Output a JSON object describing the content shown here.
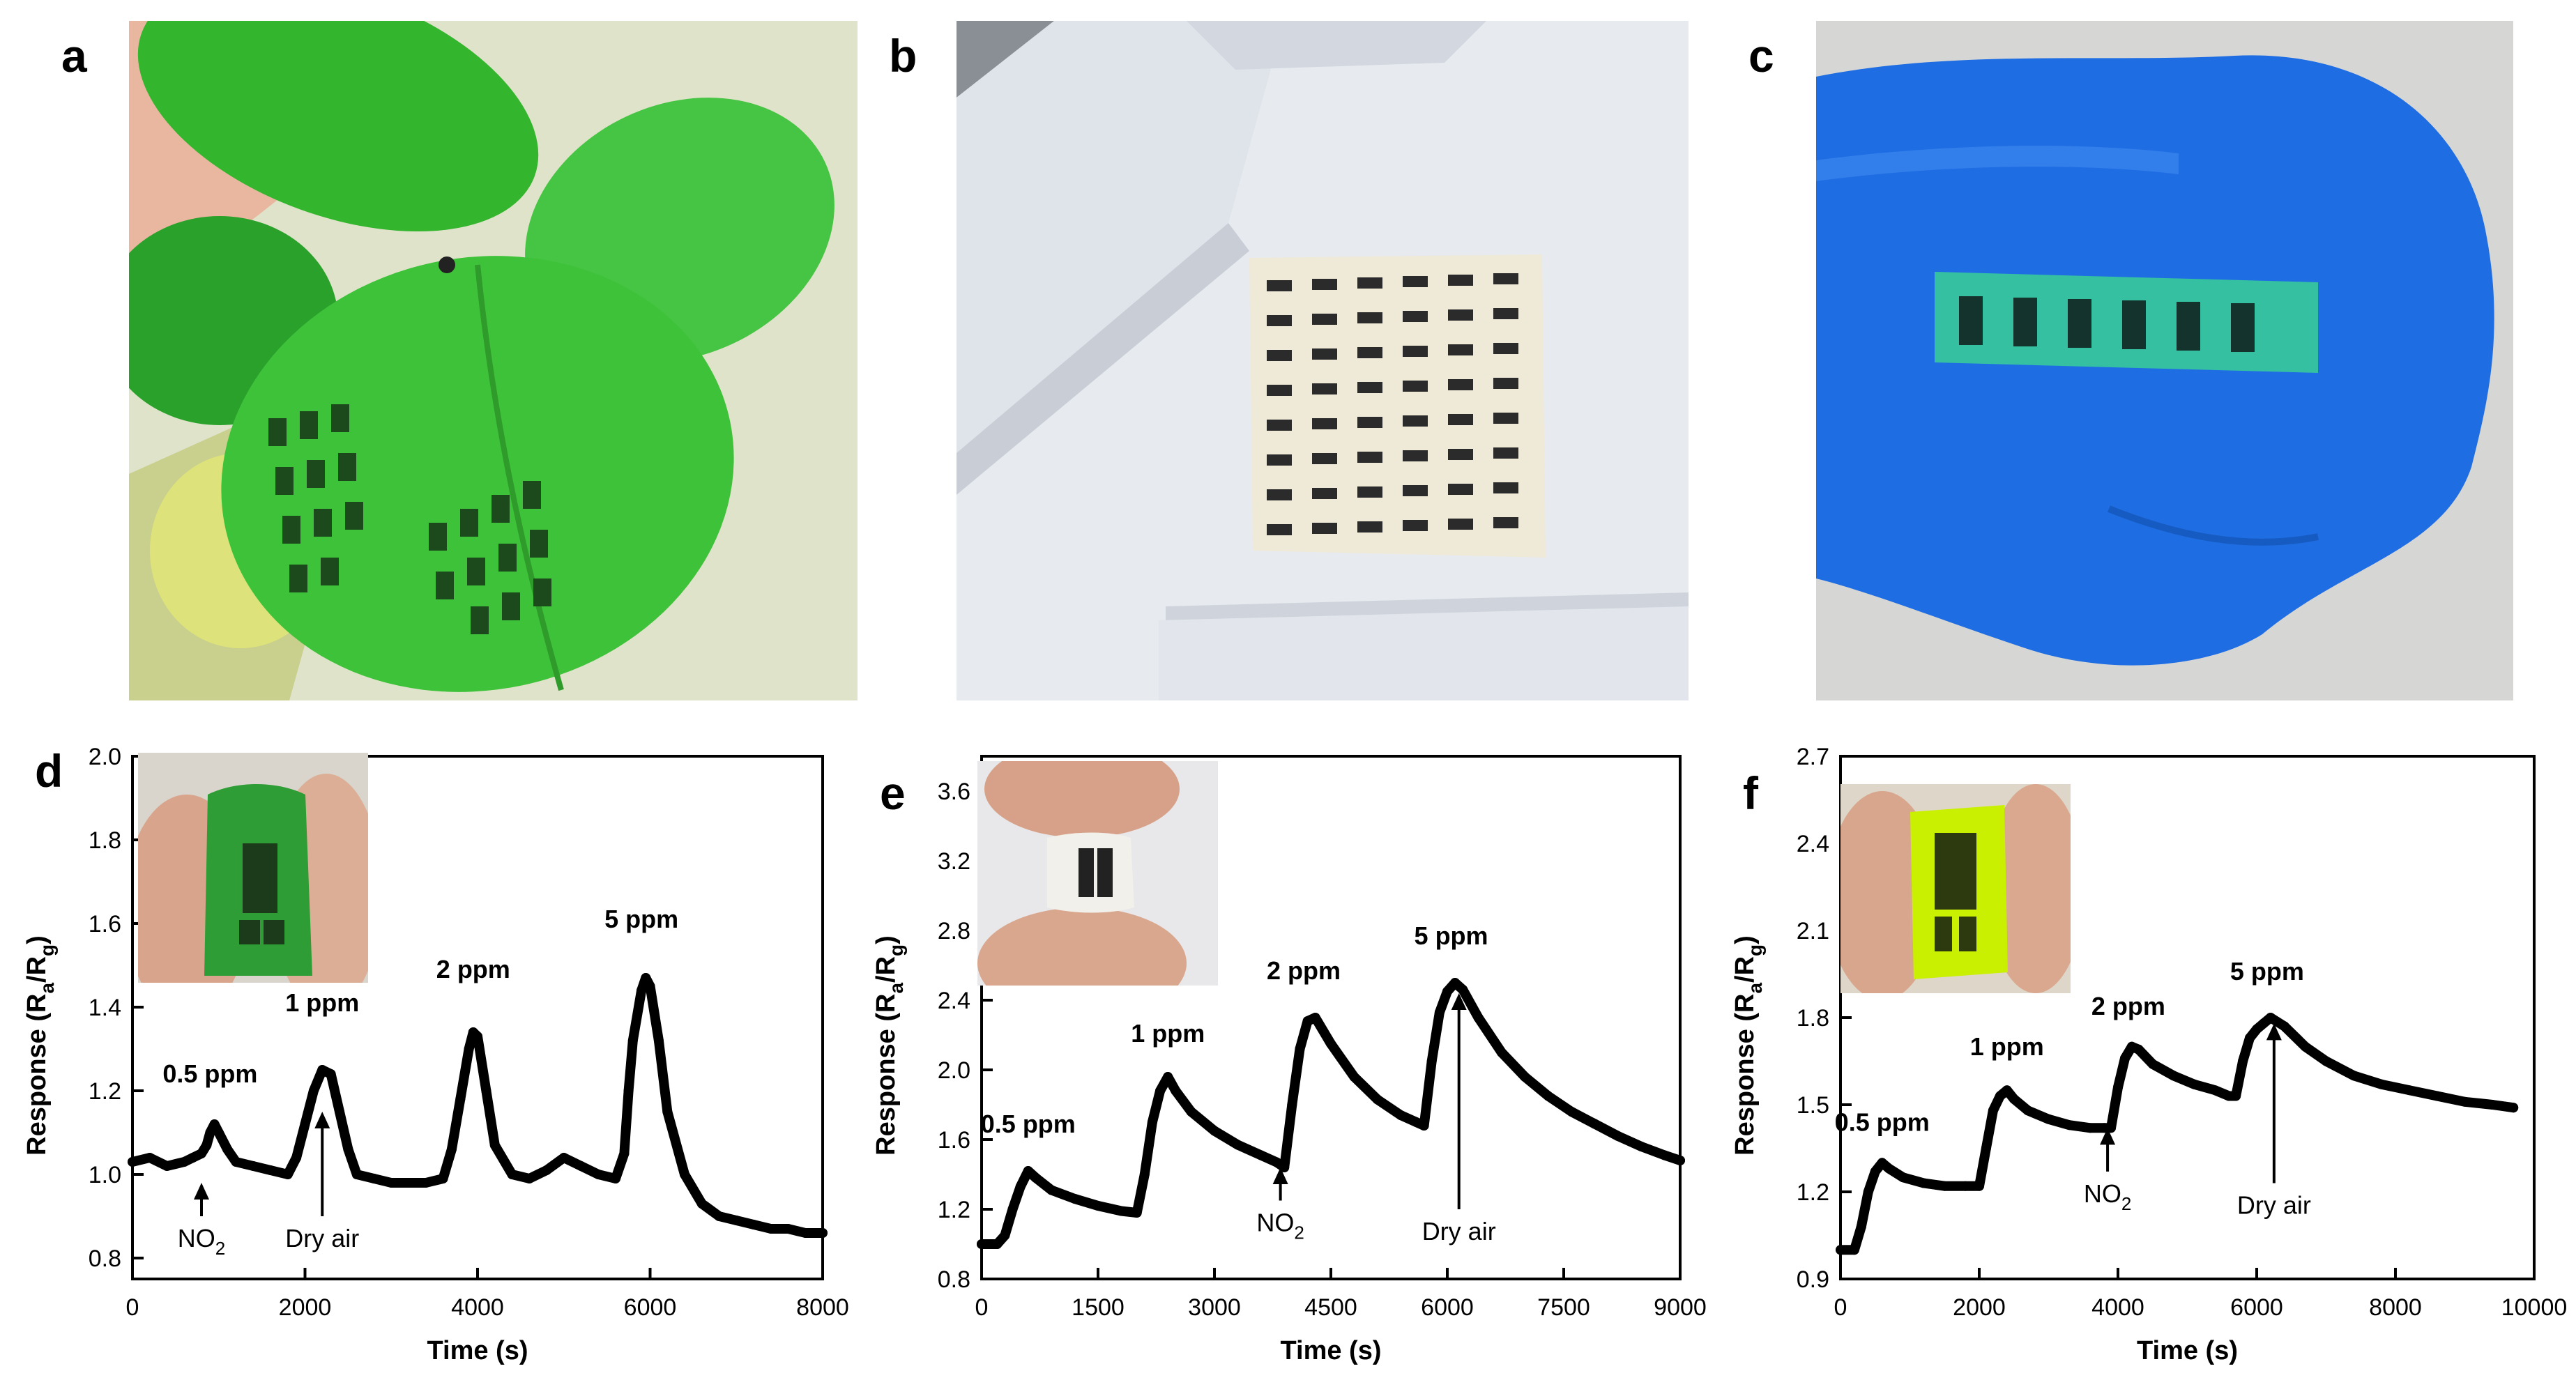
{
  "figure": {
    "panels": [
      "a",
      "b",
      "c",
      "d",
      "e",
      "f"
    ]
  },
  "photos": {
    "a": "leaf-with-printed-sensor-array",
    "b": "lab-coat-with-printed-sensor-array",
    "c": "blue-glove-fist-with-sensor-strip",
    "d_inset": "sensor-wrapped-on-finger-green",
    "e_inset": "sensor-bent-between-fingers-white",
    "f_inset": "sensor-bent-between-fingers-yellow"
  },
  "colors": {
    "trace": "#000000",
    "leaf": "#3cb83c",
    "glove": "#1e6fe0",
    "coat": "#e6e9ee"
  },
  "chart_data": [
    {
      "panel": "d",
      "type": "line",
      "xlabel": "Time (s)",
      "ylabel_main": "Response (R",
      "ylabel_sub_a": "a",
      "ylabel_slash": "/R",
      "ylabel_sub_g": "g",
      "ylabel_close": ")",
      "xlim": [
        0,
        8000
      ],
      "ylim": [
        0.75,
        2.0
      ],
      "xticks": [
        0,
        2000,
        4000,
        6000,
        8000
      ],
      "xtick_labels": [
        "0",
        "2000",
        "4000",
        "6000",
        "8000"
      ],
      "yticks": [
        0.8,
        1.0,
        1.2,
        1.4,
        1.6,
        1.8,
        2.0
      ],
      "ytick_labels": [
        "0.8",
        "1.0",
        "1.2",
        "1.4",
        "1.6",
        "1.8",
        "2.0"
      ],
      "series": [
        {
          "name": "response",
          "x": [
            0,
            200,
            400,
            600,
            700,
            800,
            860,
            900,
            950,
            1000,
            1100,
            1200,
            1400,
            1600,
            1800,
            1900,
            2000,
            2100,
            2200,
            2300,
            2400,
            2500,
            2600,
            2800,
            3000,
            3200,
            3400,
            3600,
            3700,
            3800,
            3900,
            3950,
            4000,
            4100,
            4200,
            4400,
            4600,
            4800,
            5000,
            5200,
            5400,
            5600,
            5700,
            5750,
            5800,
            5900,
            5950,
            6000,
            6100,
            6200,
            6400,
            6600,
            6800,
            7000,
            7200,
            7400,
            7600,
            7800,
            8000
          ],
          "y": [
            1.03,
            1.04,
            1.02,
            1.03,
            1.04,
            1.05,
            1.07,
            1.1,
            1.12,
            1.1,
            1.06,
            1.03,
            1.02,
            1.01,
            1.0,
            1.04,
            1.12,
            1.2,
            1.25,
            1.24,
            1.15,
            1.06,
            1.0,
            0.99,
            0.98,
            0.98,
            0.98,
            0.99,
            1.06,
            1.18,
            1.3,
            1.34,
            1.33,
            1.2,
            1.07,
            1.0,
            0.99,
            1.01,
            1.04,
            1.02,
            1.0,
            0.99,
            1.05,
            1.2,
            1.32,
            1.44,
            1.47,
            1.45,
            1.32,
            1.15,
            1.0,
            0.93,
            0.9,
            0.89,
            0.88,
            0.87,
            0.87,
            0.86,
            0.86
          ]
        }
      ],
      "annotations": [
        {
          "text": "0.5 ppm",
          "x": 900,
          "y": 1.22
        },
        {
          "text": "1 ppm",
          "x": 2200,
          "y": 1.39
        },
        {
          "text": "2 ppm",
          "x": 3950,
          "y": 1.47
        },
        {
          "text": "5 ppm",
          "x": 5900,
          "y": 1.59
        }
      ],
      "arrows": [
        {
          "label": "NO",
          "sub": "2",
          "x": 800,
          "from_y": 0.98,
          "to_y": 0.9
        },
        {
          "label": "Dry air",
          "x": 2200,
          "from_y": 1.15,
          "to_y": 0.9
        }
      ]
    },
    {
      "panel": "e",
      "type": "line",
      "xlabel": "Time (s)",
      "ylabel_main": "Response (R",
      "ylabel_sub_a": "a",
      "ylabel_slash": "/R",
      "ylabel_sub_g": "g",
      "ylabel_close": ")",
      "xlim": [
        0,
        9000
      ],
      "ylim": [
        0.8,
        3.8
      ],
      "xticks": [
        0,
        1500,
        3000,
        4500,
        6000,
        7500,
        9000
      ],
      "xtick_labels": [
        "0",
        "1500",
        "3000",
        "4500",
        "6000",
        "7500",
        "9000"
      ],
      "yticks": [
        0.8,
        1.2,
        1.6,
        2.0,
        2.4,
        2.8,
        3.2,
        3.6
      ],
      "ytick_labels": [
        "0.8",
        "1.2",
        "1.6",
        "2.0",
        "2.4",
        "2.8",
        "3.2",
        "3.6"
      ],
      "series": [
        {
          "name": "response",
          "x": [
            0,
            200,
            300,
            400,
            500,
            600,
            700,
            900,
            1200,
            1500,
            1800,
            2000,
            2100,
            2200,
            2300,
            2400,
            2500,
            2700,
            3000,
            3300,
            3600,
            3800,
            3900,
            4000,
            4100,
            4200,
            4300,
            4500,
            4800,
            5100,
            5400,
            5600,
            5700,
            5800,
            5900,
            6000,
            6100,
            6200,
            6400,
            6700,
            7000,
            7300,
            7600,
            7900,
            8200,
            8500,
            8800,
            9000
          ],
          "y": [
            1.0,
            1.0,
            1.05,
            1.2,
            1.33,
            1.42,
            1.38,
            1.31,
            1.26,
            1.22,
            1.19,
            1.18,
            1.4,
            1.7,
            1.88,
            1.96,
            1.88,
            1.76,
            1.65,
            1.57,
            1.51,
            1.47,
            1.44,
            1.8,
            2.12,
            2.28,
            2.3,
            2.15,
            1.96,
            1.83,
            1.74,
            1.7,
            1.68,
            2.05,
            2.33,
            2.45,
            2.5,
            2.46,
            2.3,
            2.1,
            1.96,
            1.85,
            1.76,
            1.69,
            1.62,
            1.56,
            1.51,
            1.48
          ]
        }
      ],
      "annotations": [
        {
          "text": "0.5 ppm",
          "x": 600,
          "y": 1.64
        },
        {
          "text": "1 ppm",
          "x": 2400,
          "y": 2.16
        },
        {
          "text": "2 ppm",
          "x": 4150,
          "y": 2.52
        },
        {
          "text": "5 ppm",
          "x": 6050,
          "y": 2.72
        }
      ],
      "arrows": [
        {
          "label": "NO",
          "sub": "2",
          "x": 3850,
          "from_y": 1.44,
          "to_y": 1.25
        },
        {
          "label": "Dry air",
          "x": 6150,
          "from_y": 2.44,
          "to_y": 1.2
        }
      ]
    },
    {
      "panel": "f",
      "type": "line",
      "xlabel": "Time (s)",
      "ylabel_main": "Response (R",
      "ylabel_sub_a": "a",
      "ylabel_slash": "/R",
      "ylabel_sub_g": "g",
      "ylabel_close": ")",
      "xlim": [
        0,
        10000
      ],
      "ylim": [
        0.9,
        2.7
      ],
      "xticks": [
        0,
        2000,
        4000,
        6000,
        8000,
        10000
      ],
      "xtick_labels": [
        "0",
        "2000",
        "4000",
        "6000",
        "8000",
        "10000"
      ],
      "yticks": [
        0.9,
        1.2,
        1.5,
        1.8,
        2.1,
        2.4,
        2.7
      ],
      "ytick_labels": [
        "0.9",
        "1.2",
        "1.5",
        "1.8",
        "2.1",
        "2.4",
        "2.7"
      ],
      "series": [
        {
          "name": "response",
          "x": [
            0,
            200,
            300,
            400,
            500,
            600,
            700,
            900,
            1200,
            1500,
            1800,
            2000,
            2100,
            2200,
            2300,
            2400,
            2500,
            2700,
            3000,
            3300,
            3600,
            3800,
            3900,
            4000,
            4100,
            4200,
            4300,
            4500,
            4800,
            5100,
            5400,
            5600,
            5700,
            5800,
            5900,
            6000,
            6100,
            6200,
            6400,
            6700,
            7000,
            7400,
            7800,
            8200,
            8600,
            9000,
            9400,
            9700
          ],
          "y": [
            1.0,
            1.0,
            1.08,
            1.2,
            1.27,
            1.3,
            1.28,
            1.25,
            1.23,
            1.22,
            1.22,
            1.22,
            1.35,
            1.48,
            1.53,
            1.55,
            1.52,
            1.48,
            1.45,
            1.43,
            1.42,
            1.42,
            1.42,
            1.56,
            1.66,
            1.7,
            1.69,
            1.64,
            1.6,
            1.57,
            1.55,
            1.53,
            1.53,
            1.65,
            1.73,
            1.76,
            1.78,
            1.8,
            1.77,
            1.7,
            1.65,
            1.6,
            1.57,
            1.55,
            1.53,
            1.51,
            1.5,
            1.49
          ]
        }
      ],
      "annotations": [
        {
          "text": "0.5 ppm",
          "x": 600,
          "y": 1.41
        },
        {
          "text": "1 ppm",
          "x": 2400,
          "y": 1.67
        },
        {
          "text": "2 ppm",
          "x": 4150,
          "y": 1.81
        },
        {
          "text": "5 ppm",
          "x": 6150,
          "y": 1.93
        }
      ],
      "arrows": [
        {
          "label": "NO",
          "sub": "2",
          "x": 3850,
          "from_y": 1.42,
          "to_y": 1.27
        },
        {
          "label": "Dry air",
          "x": 6250,
          "from_y": 1.78,
          "to_y": 1.23
        }
      ]
    }
  ]
}
